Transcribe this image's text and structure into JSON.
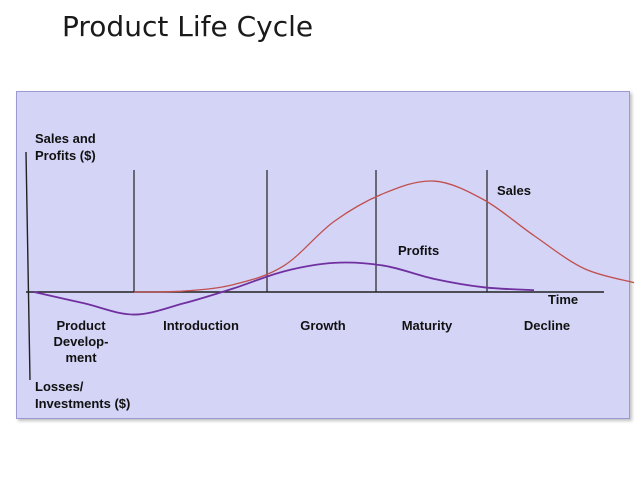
{
  "title": "Product Life Cycle",
  "chart_data": {
    "type": "line",
    "y_label_top": [
      "Sales and",
      "Profits ($)"
    ],
    "y_label_bottom": [
      "Losses/",
      "Investments ($)"
    ],
    "x_label": "Time",
    "stages": [
      {
        "name": [
          "Product",
          "Develop-",
          "ment"
        ]
      },
      {
        "name": [
          "Introduction"
        ]
      },
      {
        "name": [
          "Growth"
        ]
      },
      {
        "name": [
          "Maturity"
        ]
      },
      {
        "name": [
          "Decline"
        ]
      }
    ],
    "series": [
      {
        "name": "Sales",
        "color": "#c0504d",
        "values": [
          [
            0,
            0
          ],
          [
            0.5,
            0.01
          ],
          [
            1,
            0.08
          ],
          [
            1.5,
            0.28
          ],
          [
            2,
            0.75
          ],
          [
            2.5,
            1.05
          ],
          [
            3,
            1.18
          ],
          [
            3.5,
            0.98
          ],
          [
            4,
            0.6
          ],
          [
            4.5,
            0.25
          ],
          [
            5,
            0.1
          ]
        ]
      },
      {
        "name": "Profits",
        "color": "#7030a0",
        "values": [
          [
            -1,
            0
          ],
          [
            -0.5,
            -0.12
          ],
          [
            0,
            -0.24
          ],
          [
            0.5,
            -0.12
          ],
          [
            1,
            0.04
          ],
          [
            1.5,
            0.22
          ],
          [
            2,
            0.31
          ],
          [
            2.5,
            0.28
          ],
          [
            3,
            0.14
          ],
          [
            3.5,
            0.05
          ],
          [
            4,
            0.02
          ]
        ]
      }
    ],
    "colors": {
      "panel": "#d4d4f7",
      "axis": "#222222"
    }
  }
}
